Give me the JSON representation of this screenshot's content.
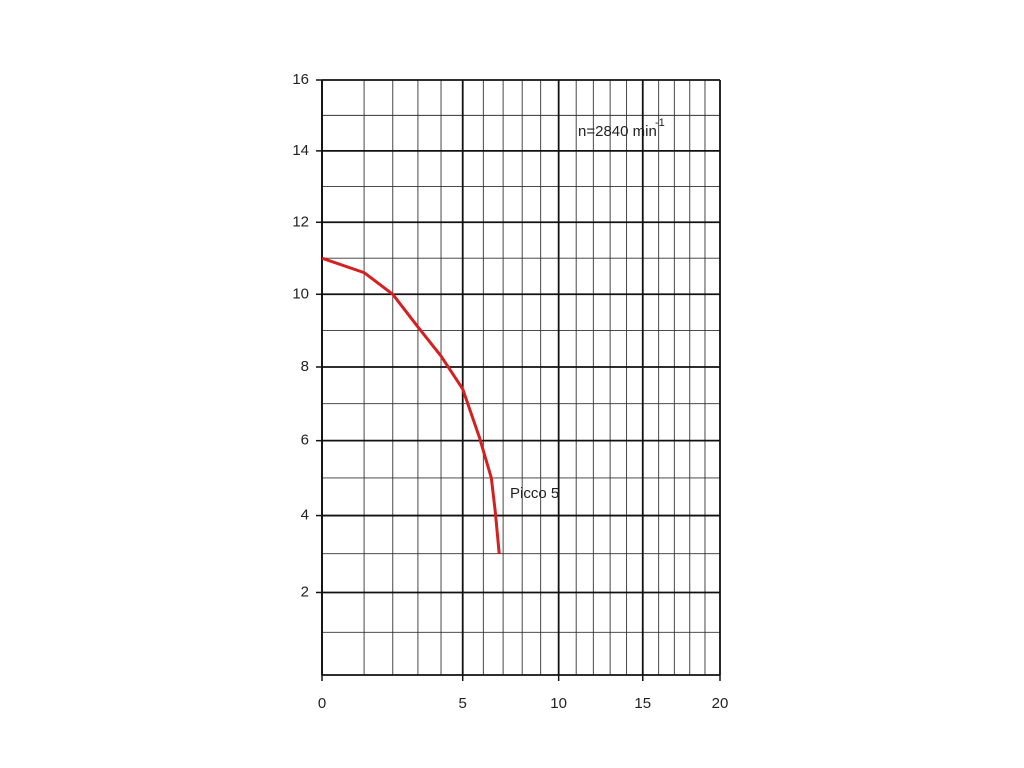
{
  "chart_data": {
    "type": "line",
    "annotation": {
      "text": "n=2840 min",
      "sup": "-1"
    },
    "x": [
      0,
      1,
      2,
      3,
      4,
      5,
      5.8,
      6.4,
      6.6,
      6.8
    ],
    "series": [
      {
        "name": "Picco 5",
        "color": "#d42020",
        "values": [
          11.0,
          10.6,
          10.0,
          9.1,
          8.3,
          7.4,
          6.1,
          5.0,
          4.1,
          3.0
        ]
      }
    ],
    "xlim": [
      0,
      20
    ],
    "xticks": [
      0,
      5,
      10,
      15,
      20
    ],
    "xminorticks": [
      1,
      2,
      3,
      4,
      6,
      7,
      8,
      9,
      11,
      12,
      13,
      14,
      16,
      17,
      18,
      19
    ],
    "ylim": [
      0,
      16
    ],
    "yticks": [
      2,
      4,
      6,
      8,
      10,
      12,
      14,
      16
    ],
    "yminorticks": [
      1,
      3,
      5,
      7,
      9,
      11,
      13,
      15
    ],
    "xscale": "power",
    "xexponent": 0.75,
    "yscale": "power",
    "yexponent": 0.95,
    "grid": true
  }
}
